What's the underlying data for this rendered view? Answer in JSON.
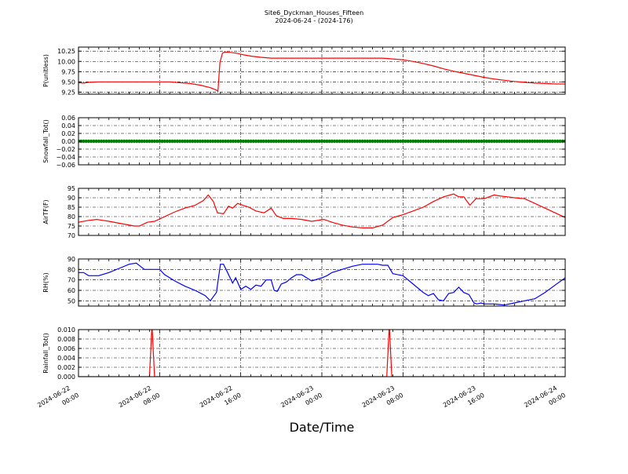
{
  "figure": {
    "title": "Site6_Dyckman_Houses_Fifteen",
    "subtitle": "2024-06-24 - (2024-176)",
    "xlabel": "Date/Time"
  },
  "chart_data": [
    {
      "type": "line",
      "ylabel": "P(unitless)",
      "ylim": [
        9.2,
        10.35
      ],
      "yticks": [
        "9.25",
        "9.50",
        "9.75",
        "10.00",
        "10.25"
      ],
      "color": "#ff0000",
      "grid": true,
      "x": [
        0,
        0.5,
        1,
        2,
        3,
        4,
        5,
        6,
        7,
        8,
        9,
        10,
        11,
        12,
        13,
        13.6,
        13.75,
        13.95,
        14.2,
        14.4,
        15,
        15.6,
        16.3,
        17,
        18,
        19,
        20,
        22,
        24,
        26,
        28,
        30,
        31,
        32,
        33,
        34,
        35,
        36,
        37,
        38,
        39,
        40,
        41,
        42,
        43,
        44,
        45,
        46,
        47,
        48
      ],
      "values": [
        9.48,
        9.47,
        9.49,
        9.5,
        9.5,
        9.5,
        9.5,
        9.5,
        9.5,
        9.5,
        9.5,
        9.48,
        9.46,
        9.42,
        9.36,
        9.3,
        9.27,
        9.98,
        10.2,
        10.23,
        10.22,
        10.2,
        10.16,
        10.13,
        10.1,
        10.08,
        10.08,
        10.08,
        10.08,
        10.08,
        10.08,
        10.08,
        10.06,
        10.04,
        10.0,
        9.95,
        9.89,
        9.82,
        9.76,
        9.71,
        9.66,
        9.61,
        9.57,
        9.54,
        9.51,
        9.49,
        9.47,
        9.46,
        9.45,
        9.45
      ]
    },
    {
      "type": "line",
      "ylabel": "Snowfall_Tot()",
      "ylim": [
        -0.06,
        0.06
      ],
      "yticks": [
        "−0.06",
        "−0.04",
        "−0.02",
        "0.00",
        "0.02",
        "0.04",
        "0.06"
      ],
      "color": "#008000",
      "grid": true,
      "markers": true,
      "x": [
        0,
        48
      ],
      "values": [
        0.0,
        0.0
      ]
    },
    {
      "type": "line",
      "ylabel": "AirTF(F)",
      "ylim": [
        70,
        95
      ],
      "yticks": [
        "70",
        "75",
        "80",
        "85",
        "90",
        "95"
      ],
      "color": "#ff0000",
      "grid": true,
      "x": [
        0,
        1,
        1.8,
        3,
        4.5,
        5.5,
        6,
        6.8,
        7.5,
        8.5,
        9.5,
        10.5,
        11.5,
        12.3,
        12.8,
        13.3,
        13.7,
        14.3,
        14.8,
        15.2,
        15.7,
        16.2,
        16.8,
        17.5,
        18.3,
        19,
        19.5,
        20.2,
        21,
        22,
        23,
        24.2,
        25,
        26,
        27,
        28,
        29,
        30,
        31,
        32,
        33,
        34,
        35,
        36,
        37,
        37.5,
        38,
        38.6,
        39.2,
        40,
        41,
        41.5,
        42.3,
        43,
        44,
        45,
        46,
        47,
        48
      ],
      "values": [
        77,
        78,
        78.5,
        77.5,
        76,
        75,
        75,
        77,
        77.5,
        80,
        82.5,
        84.5,
        86,
        88.5,
        91.5,
        88,
        82,
        81.5,
        85.5,
        84.5,
        87,
        86,
        85,
        83,
        82,
        84.5,
        80.5,
        79,
        79,
        78.5,
        77.5,
        78.5,
        77,
        75.5,
        74.5,
        74,
        74,
        75.5,
        79.5,
        81,
        83,
        85,
        88,
        90.5,
        92,
        90.5,
        90.5,
        86,
        89.5,
        89.5,
        91.5,
        91,
        90.5,
        90,
        89.5,
        87,
        84.5,
        82,
        79.5
      ]
    },
    {
      "type": "line",
      "ylabel": "RH(%)",
      "ylim": [
        45,
        90
      ],
      "yticks": [
        "50",
        "60",
        "70",
        "80",
        "90"
      ],
      "color": "#0000ff",
      "grid": true,
      "x": [
        0,
        0.5,
        1,
        2,
        3,
        4,
        5,
        5.7,
        6.5,
        7.5,
        8,
        8.5,
        9.5,
        10.5,
        11.5,
        12.5,
        13,
        13.6,
        14,
        14.3,
        14.7,
        15.2,
        15.5,
        16,
        16.5,
        17,
        17.5,
        18,
        18.5,
        19,
        19.3,
        19.6,
        20,
        20.5,
        21,
        21.5,
        22,
        23,
        24,
        24.5,
        25,
        26,
        27,
        28,
        29,
        29.5,
        30,
        30.5,
        31,
        32,
        33,
        34,
        34.5,
        35,
        35.5,
        36,
        36.5,
        37,
        37.5,
        38,
        38.5,
        39,
        39.3,
        39.7,
        40,
        41,
        42,
        43,
        44,
        45,
        46,
        47,
        48
      ],
      "values": [
        77,
        77,
        74,
        74,
        77,
        81,
        85,
        86,
        80,
        80,
        80,
        75,
        69,
        64,
        60,
        55,
        50,
        58,
        85,
        85,
        77,
        67,
        72,
        61,
        64,
        61,
        65,
        64,
        70,
        70,
        60,
        59,
        66,
        68,
        72,
        75,
        75,
        69,
        72,
        74,
        77,
        80,
        83,
        85,
        85,
        85,
        84,
        84,
        76,
        74,
        66,
        58,
        55,
        57,
        51,
        50,
        57,
        58,
        63,
        58,
        56,
        48,
        47,
        48,
        47,
        47,
        46,
        48,
        50,
        52,
        58,
        65,
        72
      ]
    },
    {
      "type": "line",
      "ylabel": "Rainfall_Tot()",
      "ylim": [
        0,
        0.01
      ],
      "yticks": [
        "0.000",
        "0.002",
        "0.004",
        "0.006",
        "0.008",
        "0.010"
      ],
      "color": "#ff0000",
      "grid": true,
      "x": [
        0,
        7.0,
        7.25,
        7.5,
        30.4,
        30.65,
        30.9,
        48
      ],
      "values": [
        0,
        0,
        0.011,
        0,
        0,
        0.011,
        0,
        0
      ]
    }
  ],
  "x_axis": {
    "range_hours": [
      0,
      48
    ],
    "tick_hours": [
      0,
      8,
      16,
      24,
      32,
      40,
      48
    ],
    "tick_line1": [
      "2024-06-22",
      "2024-06-22",
      "2024-06-22",
      "2024-06-23",
      "2024-06-23",
      "2024-06-23",
      "2024-06-24"
    ],
    "tick_line2": [
      "00:00",
      "08:00",
      "16:00",
      "00:00",
      "08:00",
      "16:00",
      "00:00"
    ]
  }
}
